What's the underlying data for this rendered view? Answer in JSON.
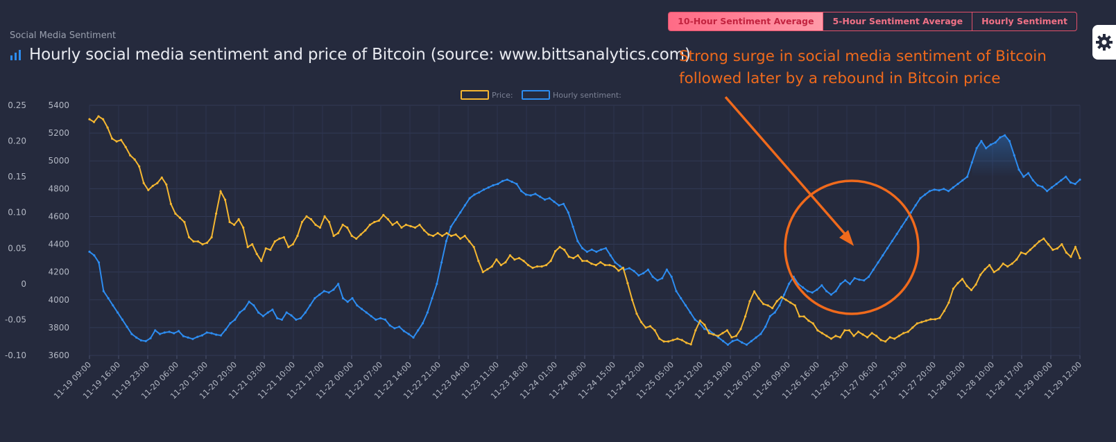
{
  "header": {
    "section_label": "Social Media Sentiment",
    "title": "Hourly social media sentiment and price of Bitcoin (source: www.bittsanalytics.com)",
    "title_icon": "bar-chart-icon"
  },
  "tabs": [
    {
      "label": "10-Hour Sentiment Average",
      "active": true
    },
    {
      "label": "5-Hour Sentiment Average",
      "active": false
    },
    {
      "label": "Hourly Sentiment",
      "active": false
    }
  ],
  "settings_icon": "gear-icon",
  "annotation": {
    "line1": "Strong surge in social media sentiment of Bitcoin",
    "line2": "followed later by a rebound in Bitcoin price",
    "color": "#f06a1c"
  },
  "chart_data": {
    "type": "line",
    "grid": true,
    "legend_position": "top-center",
    "x_ticks": [
      "11-19 09:00",
      "11-19 16:00",
      "11-19 23:00",
      "11-20 06:00",
      "11-20 13:00",
      "11-20 20:00",
      "11-21 03:00",
      "11-21 10:00",
      "11-21 17:00",
      "11-22 00:00",
      "11-22 07:00",
      "11-22 14:00",
      "11-22 21:00",
      "11-23 04:00",
      "11-23 11:00",
      "11-23 18:00",
      "11-24 01:00",
      "11-24 08:00",
      "11-24 15:00",
      "11-24 22:00",
      "11-25 05:00",
      "11-25 12:00",
      "11-25 19:00",
      "11-26 02:00",
      "11-26 09:00",
      "11-26 16:00",
      "11-26 23:00",
      "11-27 06:00",
      "11-27 13:00",
      "11-27 20:00",
      "11-28 03:00",
      "11-28 10:00",
      "11-28 17:00",
      "11-29 00:00",
      "11-29 12:00"
    ],
    "y_price_ticks": [
      "5400",
      "5200",
      "5000",
      "4800",
      "4600",
      "4400",
      "4200",
      "4000",
      "3800",
      "3600"
    ],
    "y_price_range": [
      3600,
      5400
    ],
    "y_sentiment_ticks": [
      "0.25",
      "0.20",
      "0.15",
      "0.10",
      "0.05",
      "0",
      "-0.05",
      "-0.10"
    ],
    "y_sentiment_range": [
      -0.1,
      0.25
    ],
    "series": [
      {
        "name": "Price:",
        "axis": "price",
        "color": "#f5b731",
        "values": [
          5300,
          5280,
          5320,
          5300,
          5240,
          5160,
          5140,
          5150,
          5100,
          5040,
          5010,
          4960,
          4840,
          4790,
          4820,
          4840,
          4880,
          4830,
          4690,
          4620,
          4590,
          4560,
          4450,
          4420,
          4420,
          4400,
          4410,
          4450,
          4620,
          4780,
          4720,
          4560,
          4540,
          4580,
          4520,
          4380,
          4400,
          4330,
          4280,
          4370,
          4360,
          4420,
          4440,
          4450,
          4380,
          4400,
          4460,
          4560,
          4600,
          4580,
          4540,
          4520,
          4600,
          4560,
          4460,
          4480,
          4540,
          4520,
          4460,
          4440,
          4470,
          4500,
          4540,
          4560,
          4570,
          4610,
          4580,
          4540,
          4560,
          4520,
          4540,
          4530,
          4520,
          4540,
          4500,
          4470,
          4460,
          4480,
          4460,
          4480,
          4460,
          4470,
          4440,
          4460,
          4420,
          4380,
          4280,
          4200,
          4220,
          4240,
          4290,
          4250,
          4270,
          4320,
          4290,
          4300,
          4280,
          4250,
          4230,
          4240,
          4240,
          4250,
          4280,
          4350,
          4380,
          4360,
          4310,
          4300,
          4320,
          4280,
          4280,
          4260,
          4250,
          4270,
          4250,
          4250,
          4240,
          4210,
          4230,
          4120,
          4000,
          3900,
          3840,
          3800,
          3810,
          3780,
          3720,
          3700,
          3700,
          3710,
          3720,
          3710,
          3690,
          3680,
          3780,
          3850,
          3820,
          3760,
          3750,
          3740,
          3760,
          3780,
          3730,
          3740,
          3790,
          3880,
          3990,
          4060,
          4010,
          3970,
          3960,
          3940,
          3990,
          4020,
          4000,
          3980,
          3960,
          3880,
          3880,
          3850,
          3830,
          3780,
          3760,
          3740,
          3720,
          3740,
          3730,
          3780,
          3780,
          3740,
          3770,
          3750,
          3730,
          3760,
          3740,
          3710,
          3700,
          3730,
          3720,
          3740,
          3760,
          3770,
          3800,
          3830,
          3840,
          3850,
          3860,
          3860,
          3870,
          3920,
          3980,
          4080,
          4120,
          4150,
          4100,
          4070,
          4110,
          4180,
          4220,
          4250,
          4200,
          4220,
          4260,
          4240,
          4260,
          4290,
          4340,
          4330,
          4360,
          4390,
          4420,
          4440,
          4400,
          4360,
          4370,
          4400,
          4340,
          4310,
          4380,
          4300
        ]
      },
      {
        "name": "Hourly sentiment:",
        "axis": "sentiment",
        "color": "#2d8cf0",
        "values": [
          0.045,
          0.04,
          0.03,
          -0.01,
          -0.02,
          -0.03,
          -0.04,
          -0.05,
          -0.06,
          -0.07,
          -0.075,
          -0.079,
          -0.08,
          -0.076,
          -0.065,
          -0.07,
          -0.068,
          -0.067,
          -0.069,
          -0.066,
          -0.073,
          -0.075,
          -0.077,
          -0.074,
          -0.072,
          -0.068,
          -0.069,
          -0.071,
          -0.072,
          -0.064,
          -0.055,
          -0.05,
          -0.04,
          -0.035,
          -0.025,
          -0.03,
          -0.04,
          -0.045,
          -0.04,
          -0.036,
          -0.048,
          -0.05,
          -0.04,
          -0.044,
          -0.05,
          -0.048,
          -0.04,
          -0.03,
          -0.02,
          -0.015,
          -0.01,
          -0.012,
          -0.008,
          0.0,
          -0.02,
          -0.025,
          -0.02,
          -0.03,
          -0.035,
          -0.04,
          -0.045,
          -0.05,
          -0.048,
          -0.05,
          -0.058,
          -0.062,
          -0.06,
          -0.066,
          -0.07,
          -0.075,
          -0.065,
          -0.055,
          -0.04,
          -0.02,
          0.0,
          0.03,
          0.06,
          0.08,
          0.09,
          0.1,
          0.11,
          0.12,
          0.125,
          0.128,
          0.132,
          0.135,
          0.138,
          0.14,
          0.144,
          0.146,
          0.143,
          0.14,
          0.13,
          0.125,
          0.124,
          0.126,
          0.122,
          0.118,
          0.12,
          0.115,
          0.11,
          0.112,
          0.1,
          0.08,
          0.06,
          0.05,
          0.045,
          0.048,
          0.045,
          0.048,
          0.05,
          0.04,
          0.03,
          0.025,
          0.02,
          0.022,
          0.018,
          0.012,
          0.015,
          0.02,
          0.01,
          0.005,
          0.008,
          0.02,
          0.01,
          -0.01,
          -0.02,
          -0.03,
          -0.04,
          -0.05,
          -0.055,
          -0.063,
          -0.065,
          -0.07,
          -0.075,
          -0.08,
          -0.085,
          -0.08,
          -0.078,
          -0.082,
          -0.085,
          -0.08,
          -0.075,
          -0.07,
          -0.06,
          -0.045,
          -0.04,
          -0.03,
          -0.015,
          0.0,
          0.01,
          0.0,
          -0.005,
          -0.01,
          -0.012,
          -0.008,
          -0.002,
          -0.01,
          -0.015,
          -0.01,
          0.0,
          0.005,
          0.0,
          0.008,
          0.006,
          0.005,
          0.01,
          0.02,
          0.03,
          0.04,
          0.05,
          0.06,
          0.07,
          0.08,
          0.09,
          0.1,
          0.11,
          0.12,
          0.125,
          0.13,
          0.132,
          0.131,
          0.133,
          0.13,
          0.135,
          0.14,
          0.145,
          0.15,
          0.17,
          0.19,
          0.2,
          0.19,
          0.195,
          0.198,
          0.205,
          0.208,
          0.2,
          0.18,
          0.16,
          0.15,
          0.155,
          0.145,
          0.138,
          0.136,
          0.13,
          0.135,
          0.14,
          0.145,
          0.15,
          0.142,
          0.14,
          0.146
        ]
      }
    ]
  }
}
